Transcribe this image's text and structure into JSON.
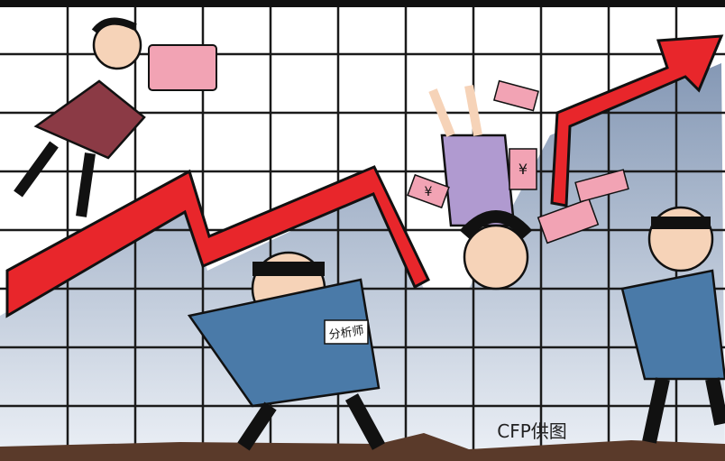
{
  "badge": "分析师",
  "credit": "CFP供图",
  "currency": "¥"
}
